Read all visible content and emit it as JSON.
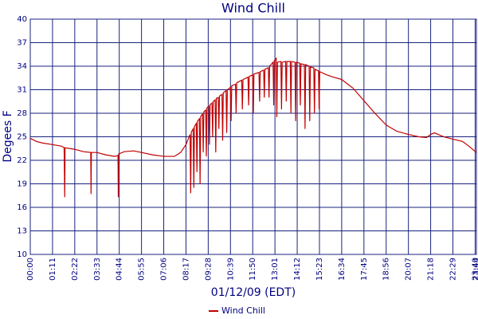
{
  "chart_data": {
    "type": "line",
    "title": "Wind Chill",
    "x_label": "01/12/09 (EDT)",
    "y_label": "Degees F",
    "xlim": [
      0,
      1424
    ],
    "ylim": [
      10,
      40
    ],
    "yticks": [
      10,
      13,
      16,
      19,
      22,
      25,
      28,
      31,
      34,
      37,
      40
    ],
    "xticks": [
      {
        "value": 0,
        "label": "00:00"
      },
      {
        "value": 71,
        "label": "01:11"
      },
      {
        "value": 142,
        "label": "02:22"
      },
      {
        "value": 213,
        "label": "03:33"
      },
      {
        "value": 284,
        "label": "04:44"
      },
      {
        "value": 355,
        "label": "05:55"
      },
      {
        "value": 426,
        "label": "07:06"
      },
      {
        "value": 497,
        "label": "08:17"
      },
      {
        "value": 568,
        "label": "09:28"
      },
      {
        "value": 639,
        "label": "10:39"
      },
      {
        "value": 710,
        "label": "11:50"
      },
      {
        "value": 781,
        "label": "13:01"
      },
      {
        "value": 852,
        "label": "14:12"
      },
      {
        "value": 923,
        "label": "15:23"
      },
      {
        "value": 994,
        "label": "16:34"
      },
      {
        "value": 1065,
        "label": "17:45"
      },
      {
        "value": 1136,
        "label": "18:56"
      },
      {
        "value": 1207,
        "label": "20:07"
      },
      {
        "value": 1278,
        "label": "21:18"
      },
      {
        "value": 1349,
        "label": "22:29"
      },
      {
        "value": 1420,
        "label": "23:40"
      },
      {
        "value": 1424,
        "label": "23:44"
      }
    ],
    "grid": true,
    "x": [
      0,
      20,
      40,
      71,
      100,
      108,
      109,
      110,
      111,
      142,
      170,
      193,
      194,
      195,
      213,
      240,
      270,
      280,
      281,
      282,
      300,
      330,
      355,
      390,
      426,
      460,
      480,
      497,
      510,
      512,
      514,
      520,
      522,
      524,
      530,
      532,
      534,
      540,
      542,
      544,
      550,
      552,
      554,
      560,
      562,
      564,
      570,
      572,
      574,
      580,
      582,
      584,
      590,
      592,
      594,
      600,
      602,
      604,
      612,
      614,
      616,
      625,
      627,
      629,
      639,
      641,
      643,
      655,
      657,
      659,
      675,
      677,
      679,
      695,
      697,
      699,
      710,
      712,
      714,
      730,
      732,
      734,
      745,
      747,
      749,
      760,
      762,
      764,
      775,
      777,
      779,
      785,
      787,
      789,
      800,
      802,
      804,
      815,
      817,
      819,
      830,
      832,
      834,
      845,
      847,
      849,
      860,
      862,
      864,
      875,
      877,
      879,
      890,
      892,
      894,
      905,
      907,
      909,
      920,
      922,
      924,
      940,
      960,
      994,
      1030,
      1065,
      1100,
      1136,
      1170,
      1207,
      1240,
      1265,
      1278,
      1290,
      1320,
      1349,
      1380,
      1400,
      1424
    ],
    "series": [
      {
        "name": "Wind Chill",
        "color": "#c00000",
        "values": [
          24.8,
          24.4,
          24.2,
          24.0,
          23.8,
          23.6,
          20.5,
          17.3,
          23.6,
          23.4,
          23.1,
          23.0,
          17.7,
          23.0,
          23.0,
          22.7,
          22.5,
          22.6,
          17.3,
          22.8,
          23.1,
          23.2,
          23.0,
          22.7,
          22.5,
          22.5,
          23.0,
          24.0,
          25.3,
          17.8,
          25.6,
          26.0,
          18.5,
          26.3,
          26.7,
          20.5,
          27.0,
          27.3,
          19.0,
          27.6,
          27.9,
          23.0,
          28.2,
          28.4,
          22.5,
          28.7,
          28.9,
          24.0,
          29.1,
          29.3,
          25.0,
          29.5,
          29.7,
          23.0,
          29.9,
          30.0,
          26.0,
          30.2,
          30.4,
          24.5,
          30.6,
          30.9,
          25.5,
          31.0,
          31.3,
          27.0,
          31.5,
          31.7,
          28.0,
          31.9,
          32.2,
          28.5,
          32.3,
          32.6,
          29.0,
          32.7,
          32.9,
          28.0,
          33.0,
          33.2,
          29.5,
          33.3,
          33.5,
          30.0,
          33.6,
          33.8,
          30.0,
          34.0,
          34.5,
          29.0,
          34.7,
          35.0,
          27.5,
          34.5,
          34.6,
          28.5,
          34.5,
          34.6,
          29.5,
          34.6,
          34.6,
          28.0,
          34.6,
          34.5,
          27.0,
          34.5,
          34.4,
          29.0,
          34.3,
          34.2,
          26.0,
          34.2,
          34.0,
          27.0,
          33.9,
          33.8,
          28.0,
          33.6,
          33.4,
          28.5,
          33.3,
          33.0,
          32.7,
          32.3,
          31.2,
          29.6,
          28.0,
          26.5,
          25.7,
          25.3,
          25.0,
          24.9,
          25.3,
          25.5,
          25.0,
          24.7,
          24.4,
          23.8,
          23.0
        ]
      }
    ]
  }
}
